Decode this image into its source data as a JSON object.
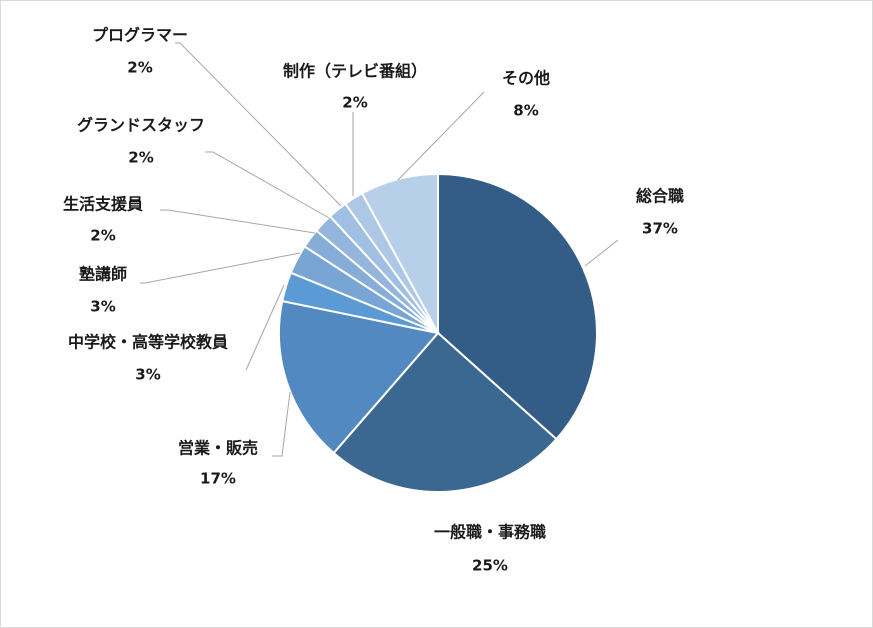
{
  "chart_data": {
    "type": "pie",
    "slices": [
      {
        "label": "総合職",
        "value": 37,
        "pct_label": "37%",
        "color": "#335d86"
      },
      {
        "label": "一般職・事務職",
        "value": 25,
        "pct_label": "25%",
        "color": "#3b6891"
      },
      {
        "label": "営業・販売",
        "value": 17,
        "pct_label": "17%",
        "color": "#5289c0"
      },
      {
        "label": "中学校・高等学校教員",
        "value": 3,
        "pct_label": "3%",
        "color": "#5b9bd5"
      },
      {
        "label": "塾講師",
        "value": 3,
        "pct_label": "3%",
        "color": "#79a5d5"
      },
      {
        "label": "生活支援員",
        "value": 2,
        "pct_label": "2%",
        "color": "#86acd8"
      },
      {
        "label": "グランドスタッフ",
        "value": 2,
        "pct_label": "2%",
        "color": "#94b6dd"
      },
      {
        "label": "プログラマー",
        "value": 2,
        "pct_label": "2%",
        "color": "#a1bfe2"
      },
      {
        "label": "制作（テレビ番組）",
        "value": 2,
        "pct_label": "2%",
        "color": "#adc7e6"
      },
      {
        "label": "その他",
        "value": 8,
        "pct_label": "8%",
        "color": "#b8cfea"
      }
    ],
    "title": "",
    "legend": "none"
  }
}
